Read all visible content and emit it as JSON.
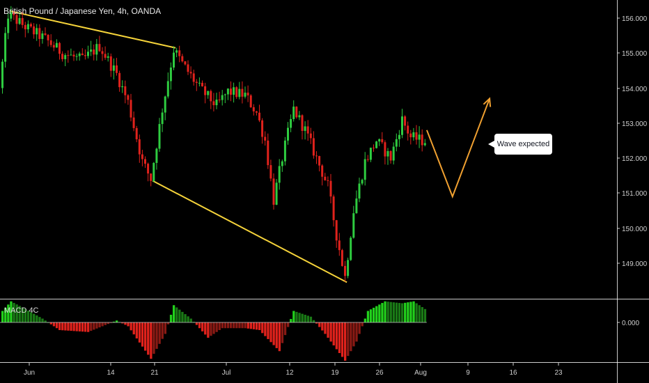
{
  "chart_data": {
    "type": "candlestick",
    "title": "British Pound / Japanese Yen, 4h, OANDA",
    "colors": {
      "up": "#2ecc40",
      "down": "#e0221c",
      "trendline": "#f5d33a",
      "projection": "#f0a030",
      "grid": "#3a3a3a"
    },
    "y_ticks": [
      "156.000",
      "155.000",
      "154.000",
      "153.000",
      "152.000",
      "151.000",
      "150.000",
      "149.000"
    ],
    "ylim": [
      148.0,
      156.3
    ],
    "x_ticks": [
      "Jun",
      "14",
      "21",
      "Jul",
      "12",
      "19",
      "26",
      "Aug",
      "9",
      "16",
      "23"
    ],
    "price_path": [
      [
        0,
        154.0
      ],
      [
        3,
        156.1
      ],
      [
        10,
        155.7
      ],
      [
        16,
        155.4
      ],
      [
        22,
        155.0
      ],
      [
        29,
        154.8
      ],
      [
        35,
        155.2
      ],
      [
        41,
        154.4
      ],
      [
        45,
        153.6
      ],
      [
        50,
        151.9
      ],
      [
        53,
        151.4
      ],
      [
        57,
        153.4
      ],
      [
        61,
        155.1
      ],
      [
        64,
        154.7
      ],
      [
        70,
        154.0
      ],
      [
        76,
        153.5
      ],
      [
        80,
        153.9
      ],
      [
        86,
        153.8
      ],
      [
        90,
        153.3
      ],
      [
        93,
        152.5
      ],
      [
        96,
        150.8
      ],
      [
        99,
        152.0
      ],
      [
        103,
        153.4
      ],
      [
        107,
        152.8
      ],
      [
        111,
        152.0
      ],
      [
        115,
        151.2
      ],
      [
        118,
        149.8
      ],
      [
        121,
        148.6
      ],
      [
        124,
        150.5
      ],
      [
        128,
        151.9
      ],
      [
        132,
        152.5
      ],
      [
        137,
        152.0
      ],
      [
        141,
        153.1
      ],
      [
        144,
        152.6
      ],
      [
        148,
        152.5
      ]
    ],
    "trendlines": [
      {
        "from": [
          3,
          156.2
        ],
        "to": [
          61,
          155.15
        ]
      },
      {
        "from": [
          53,
          151.35
        ],
        "to": [
          121,
          148.45
        ]
      }
    ],
    "projection_path": [
      [
        149,
        152.8
      ],
      [
        158,
        150.9
      ],
      [
        171,
        153.7
      ]
    ],
    "annotation": "Wave expected",
    "macd": {
      "label": "MACD 4C",
      "zero_label": "0.000",
      "bar_width": 0.8,
      "histogram_path": [
        [
          0,
          0.3
        ],
        [
          3,
          0.55
        ],
        [
          8,
          0.35
        ],
        [
          14,
          0.1
        ],
        [
          20,
          -0.2
        ],
        [
          30,
          -0.25
        ],
        [
          40,
          0.05
        ],
        [
          44,
          -0.1
        ],
        [
          52,
          -0.95
        ],
        [
          57,
          -0.3
        ],
        [
          60,
          0.45
        ],
        [
          66,
          0.1
        ],
        [
          72,
          -0.4
        ],
        [
          77,
          -0.15
        ],
        [
          85,
          -0.15
        ],
        [
          90,
          -0.2
        ],
        [
          97,
          -0.75
        ],
        [
          102,
          0.3
        ],
        [
          108,
          0.15
        ],
        [
          113,
          -0.3
        ],
        [
          120,
          -1.0
        ],
        [
          124,
          -0.5
        ],
        [
          128,
          0.3
        ],
        [
          134,
          0.55
        ],
        [
          140,
          0.5
        ],
        [
          144,
          0.55
        ],
        [
          148,
          0.35
        ]
      ]
    }
  }
}
